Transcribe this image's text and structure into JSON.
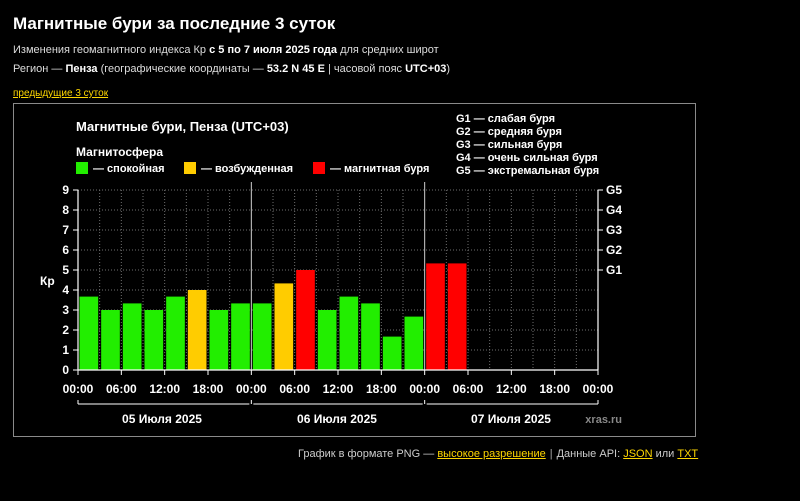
{
  "page": {
    "title": "Магнитные бури за последние 3 суток",
    "line1_pre": "Изменения геомагнитного индекса Кр ",
    "line1_bold": "с 5 по 7 июля 2025 года",
    "line1_post": " для средних широт",
    "line2_pre": "Регион — ",
    "line2_region": "Пенза",
    "line2_mid": " (географические координаты — ",
    "line2_coords": "53.2 N 45 E",
    "line2_mid2": " | часовой пояс ",
    "line2_tz": "UTC+03",
    "line2_post": ")",
    "prev_link": "предыдущие 3 суток"
  },
  "footer": {
    "png_text": "График в формате PNG — ",
    "hires_link": "высокое разрешение",
    "sep": "|",
    "api_text": "Данные API: ",
    "json_link": "JSON",
    "or_text": " или ",
    "txt_link": "TXT"
  },
  "colors": {
    "quiet": "#22ee00",
    "excited": "#ffcc00",
    "storm": "#ff0000",
    "axis": "#ffffff",
    "grid": "#6e6e6e"
  },
  "chart_data": {
    "type": "bar",
    "title": "Магнитные бури, Пенза (UTC+03)",
    "legend_title": "Магнитосфера",
    "legend": [
      {
        "label": "— спокойная",
        "status": "quiet"
      },
      {
        "label": "— возбужденная",
        "status": "excited"
      },
      {
        "label": "— магнитная буря",
        "status": "storm"
      }
    ],
    "g_legend": [
      "G1 — слабая буря",
      "G2 — средняя буря",
      "G3 — сильная буря",
      "G4 — очень сильная буря",
      "G5 — экстремальная буря"
    ],
    "ylabel": "Кр",
    "ylim": [
      0,
      9
    ],
    "yticks": [
      "0",
      "1",
      "2",
      "3",
      "4",
      "5",
      "6",
      "7",
      "8",
      "9"
    ],
    "g_levels": [
      {
        "label": "G1",
        "kp": 5
      },
      {
        "label": "G2",
        "kp": 6
      },
      {
        "label": "G3",
        "kp": 7
      },
      {
        "label": "G4",
        "kp": 8
      },
      {
        "label": "G5",
        "kp": 9
      }
    ],
    "xtick_labels": [
      "00:00",
      "06:00",
      "12:00",
      "18:00",
      "00:00",
      "06:00",
      "12:00",
      "18:00",
      "00:00",
      "06:00",
      "12:00",
      "18:00",
      "00:00"
    ],
    "days": [
      "05 Июля 2025",
      "06 Июля 2025",
      "07 Июля 2025"
    ],
    "watermark": "xras.ru",
    "values": [
      3.67,
      3.0,
      3.33,
      3.0,
      3.67,
      4.0,
      3.0,
      3.33,
      3.33,
      4.33,
      5.0,
      3.0,
      3.67,
      3.33,
      1.67,
      2.67,
      5.33,
      5.33
    ],
    "status": [
      "quiet",
      "quiet",
      "quiet",
      "quiet",
      "quiet",
      "excited",
      "quiet",
      "quiet",
      "quiet",
      "excited",
      "storm",
      "quiet",
      "quiet",
      "quiet",
      "quiet",
      "quiet",
      "storm",
      "storm"
    ]
  }
}
